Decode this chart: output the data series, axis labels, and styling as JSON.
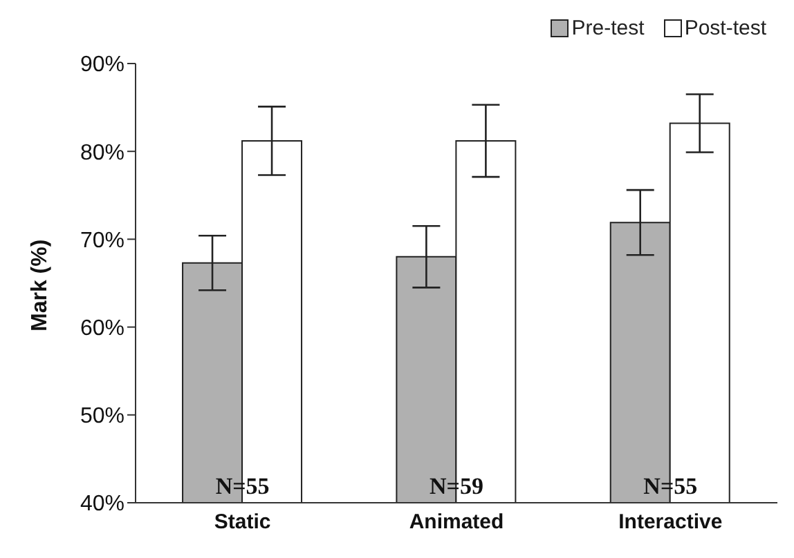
{
  "chart_data": {
    "type": "bar",
    "ylabel": "Mark (%)",
    "categories": [
      "Static",
      "Animated",
      "Interactive"
    ],
    "series": [
      {
        "name": "Pre-test",
        "color": "#b0b0b0",
        "values": [
          67.3,
          68.0,
          71.9
        ],
        "errors": [
          3.1,
          3.5,
          3.7
        ]
      },
      {
        "name": "Post-test",
        "color": "#ffffff",
        "values": [
          81.2,
          81.2,
          83.2
        ],
        "errors": [
          3.9,
          4.1,
          3.3
        ]
      }
    ],
    "ylim": [
      40,
      90
    ],
    "yticks": [
      {
        "value": 40,
        "label": "40%"
      },
      {
        "value": 50,
        "label": "50%"
      },
      {
        "value": 60,
        "label": "60%"
      },
      {
        "value": 70,
        "label": "70%"
      },
      {
        "value": 80,
        "label": "80%"
      },
      {
        "value": 90,
        "label": "90%"
      }
    ],
    "annotations": [
      {
        "text": "N=55",
        "x": "Static",
        "y": 42
      },
      {
        "text": "N=59",
        "x": "Animated",
        "y": 42
      },
      {
        "text": "N=55",
        "x": "Interactive",
        "y": 42
      }
    ],
    "legend": "top right",
    "grid": false
  }
}
